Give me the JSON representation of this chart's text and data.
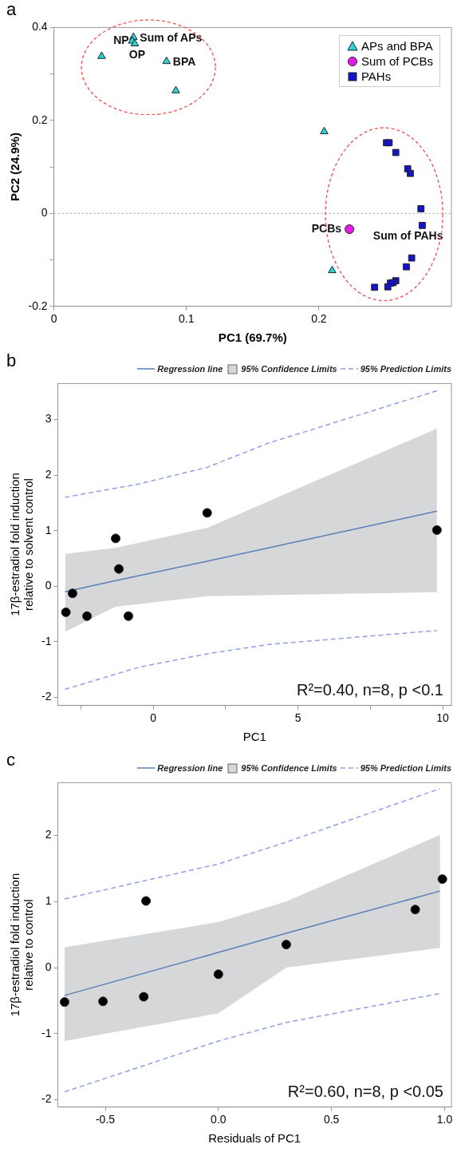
{
  "chart_data": [
    {
      "type": "scatter",
      "title": "a",
      "xlabel": "PC1 (69.7%)",
      "ylabel": "PC2 (24.9%)",
      "xlim": [
        0,
        0.3
      ],
      "xticks": [
        0,
        0.1,
        0.2
      ],
      "ylim": [
        -0.2,
        0.4
      ],
      "yticks": [
        -0.2,
        {
          "value": -0.1,
          "label": null
        },
        0,
        {
          "value": 0.1,
          "label": null
        },
        0.2,
        {
          "value": 0.3,
          "label": null
        },
        0.4
      ],
      "legend": "top right",
      "grid": false,
      "ref_lines": [
        {
          "axis": "y",
          "value": 0,
          "color": "#999999",
          "line_style": "dotted"
        }
      ],
      "series": [
        {
          "name": "APs and BPA",
          "type": "scatter",
          "color": "#2ad4d4",
          "marker": "triangle",
          "x": [
            0.036,
            0.06,
            0.059,
            0.061,
            0.085,
            0.092,
            0.204,
            0.21
          ],
          "values": [
            0.338,
            0.379,
            0.371,
            0.365,
            0.327,
            0.264,
            0.176,
            -0.123
          ]
        },
        {
          "name": "Sum of PCBs",
          "type": "scatter",
          "color": "#e619e6",
          "marker": "circle",
          "x": [
            0.223
          ],
          "values": [
            -0.034
          ]
        },
        {
          "name": "PAHs",
          "type": "scatter",
          "color": "#1414cc",
          "marker": "square",
          "x": [
            0.251,
            0.253,
            0.258,
            0.267,
            0.269,
            0.277,
            0.278,
            0.27,
            0.266,
            0.258,
            0.256,
            0.254,
            0.252,
            0.242
          ],
          "values": [
            0.152,
            0.152,
            0.131,
            0.096,
            0.086,
            0.01,
            -0.026,
            -0.096,
            -0.115,
            -0.145,
            -0.149,
            -0.15,
            -0.158,
            -0.159
          ]
        }
      ],
      "annotations": [
        {
          "text": "NP",
          "x": 0.059,
          "y": 0.371
        },
        {
          "text": "Sum of APs",
          "x": 0.06,
          "y": 0.379
        },
        {
          "text": "OP",
          "x": 0.061,
          "y": 0.365
        },
        {
          "text": "BPA",
          "x": 0.085,
          "y": 0.327
        },
        {
          "text": "PCBs",
          "x": 0.223,
          "y": -0.034
        },
        {
          "text": "Sum of PAHs",
          "x": 0.278,
          "y": -0.026
        }
      ]
    },
    {
      "type": "scatter",
      "title": "b",
      "xlabel": "PC1",
      "ylabel": "17β-estradiol fold induction\nrelative to solvent control",
      "xlim": [
        -3.3,
        10.3
      ],
      "xticks": [
        {
          "value": -2.5,
          "label": null
        },
        0,
        {
          "value": 2.5,
          "label": null
        },
        5,
        {
          "value": 7.5,
          "label": null
        },
        10
      ],
      "ylim": [
        -2.15,
        3.65
      ],
      "yticks": [
        -2,
        -1,
        0,
        1,
        2,
        3
      ],
      "legend": "top",
      "grid": false,
      "annotations": [
        "95% Confidence Limits",
        "R²=0.40, n=8, p <0.1"
      ],
      "series": [
        {
          "name": "Regression line",
          "type": "line",
          "color": "#5b7fb5",
          "line_style": "solid",
          "marker": "none",
          "x": [
            -3.05,
            -1.3,
            1.86,
            9.8
          ],
          "values": [
            -0.1,
            0.1,
            0.45,
            1.35
          ],
          "lower": [
            -0.82,
            -0.37,
            -0.18,
            -0.11
          ],
          "upper": [
            0.58,
            0.69,
            1.05,
            2.84
          ]
        },
        {
          "name": "95% Prediction Limits",
          "type": "line",
          "color": "#8f9fe6",
          "line_style": "dashed",
          "marker": "none",
          "x": [
            -3.05,
            -0.5,
            1.86,
            4,
            9.8
          ],
          "values": [
            1.6,
            1.84,
            2.14,
            2.58,
            3.52
          ]
        },
        {
          "type": "line",
          "color": "#8f9fe6",
          "line_style": "dashed",
          "marker": "none",
          "x": [
            -3.05,
            -0.5,
            1.86,
            4,
            9.8
          ],
          "values": [
            -1.86,
            -1.46,
            -1.22,
            -1.05,
            -0.8
          ]
        },
        {
          "type": "scatter",
          "color": "#000000",
          "marker": "circle",
          "x": [
            -3.02,
            -2.79,
            -2.29,
            -1.3,
            -1.19,
            -0.86,
            1.86,
            9.8
          ],
          "values": [
            -0.47,
            -0.13,
            -0.54,
            0.86,
            0.31,
            -0.54,
            1.32,
            1.01
          ]
        }
      ]
    },
    {
      "type": "scatter",
      "title": "c",
      "xlabel": "Residuals of PC1",
      "ylabel": "17β-estradiol fold induction\nrelative to control",
      "xlim": [
        -0.71,
        1.03
      ],
      "xticks": [
        {
          "value": -0.5,
          "label": "-0.5"
        },
        {
          "value": 0,
          "label": "0.0"
        },
        {
          "value": 0.5,
          "label": "0.5"
        },
        {
          "value": 1,
          "label": "1.0"
        }
      ],
      "ylim": [
        -2.11,
        2.8
      ],
      "yticks": [
        -2,
        -1,
        0,
        1,
        2
      ],
      "legend": "top",
      "grid": false,
      "annotations": [
        "95% Confidence Limits",
        "R²=0.60, n=8, p <0.05"
      ],
      "series": [
        {
          "name": "Regression line",
          "type": "line",
          "color": "#5b7fb5",
          "line_style": "solid",
          "marker": "none",
          "x": [
            -0.68,
            0,
            0.3,
            0.98
          ],
          "values": [
            -0.42,
            0.23,
            0.52,
            1.16
          ],
          "lower": [
            -1.11,
            -0.69,
            0.0,
            0.3
          ],
          "upper": [
            0.31,
            0.69,
            1.0,
            2.01
          ]
        },
        {
          "name": "95% Prediction Limits",
          "type": "line",
          "color": "#8f9fe6",
          "line_style": "dashed",
          "marker": "none",
          "x": [
            -0.68,
            0,
            0.3,
            0.98
          ],
          "values": [
            1.04,
            1.57,
            1.9,
            2.71
          ]
        },
        {
          "type": "line",
          "color": "#8f9fe6",
          "line_style": "dashed",
          "marker": "none",
          "x": [
            -0.68,
            0,
            0.3,
            0.98
          ],
          "values": [
            -1.88,
            -1.11,
            -0.83,
            -0.39
          ]
        },
        {
          "type": "scatter",
          "color": "#000000",
          "marker": "circle",
          "x": [
            -0.68,
            -0.51,
            -0.33,
            -0.32,
            0.0,
            0.3,
            0.87,
            0.99
          ],
          "values": [
            -0.52,
            -0.51,
            -0.44,
            1.01,
            -0.1,
            0.35,
            0.88,
            1.34
          ]
        }
      ]
    }
  ]
}
